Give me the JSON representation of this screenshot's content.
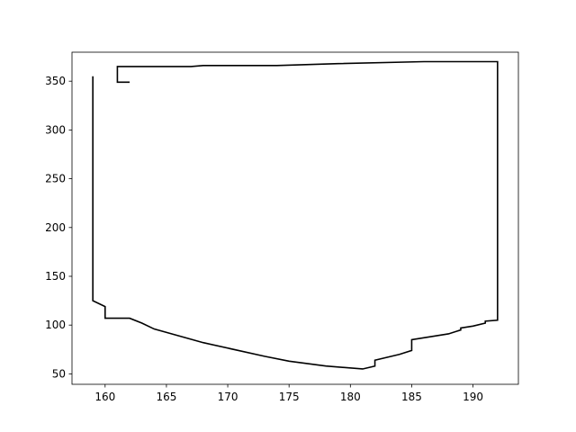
{
  "chart_data": {
    "type": "line",
    "title": "",
    "xlabel": "",
    "ylabel": "",
    "xlim": [
      157.3,
      193.7
    ],
    "ylim": [
      39.3,
      379.7
    ],
    "grid": false,
    "line_color": "#000000",
    "x_ticks": [
      160,
      165,
      170,
      175,
      180,
      185,
      190
    ],
    "y_ticks": [
      50,
      100,
      150,
      200,
      250,
      300,
      350
    ],
    "series": [
      {
        "x": [
          159,
          159,
          160,
          160,
          162,
          163,
          164,
          168,
          173,
          175,
          178,
          181,
          182,
          182,
          184,
          185,
          185,
          188,
          189,
          189,
          190,
          191,
          191,
          192,
          192,
          186,
          179,
          174,
          168,
          167,
          161,
          161,
          162
        ],
        "y": [
          355,
          125,
          119,
          107,
          107,
          102,
          96,
          82,
          68,
          63,
          58,
          55,
          58,
          64,
          70,
          74,
          85,
          91,
          95,
          97,
          99,
          102,
          104,
          105,
          370,
          370,
          368,
          366,
          366,
          365,
          365,
          349,
          349
        ]
      }
    ]
  }
}
